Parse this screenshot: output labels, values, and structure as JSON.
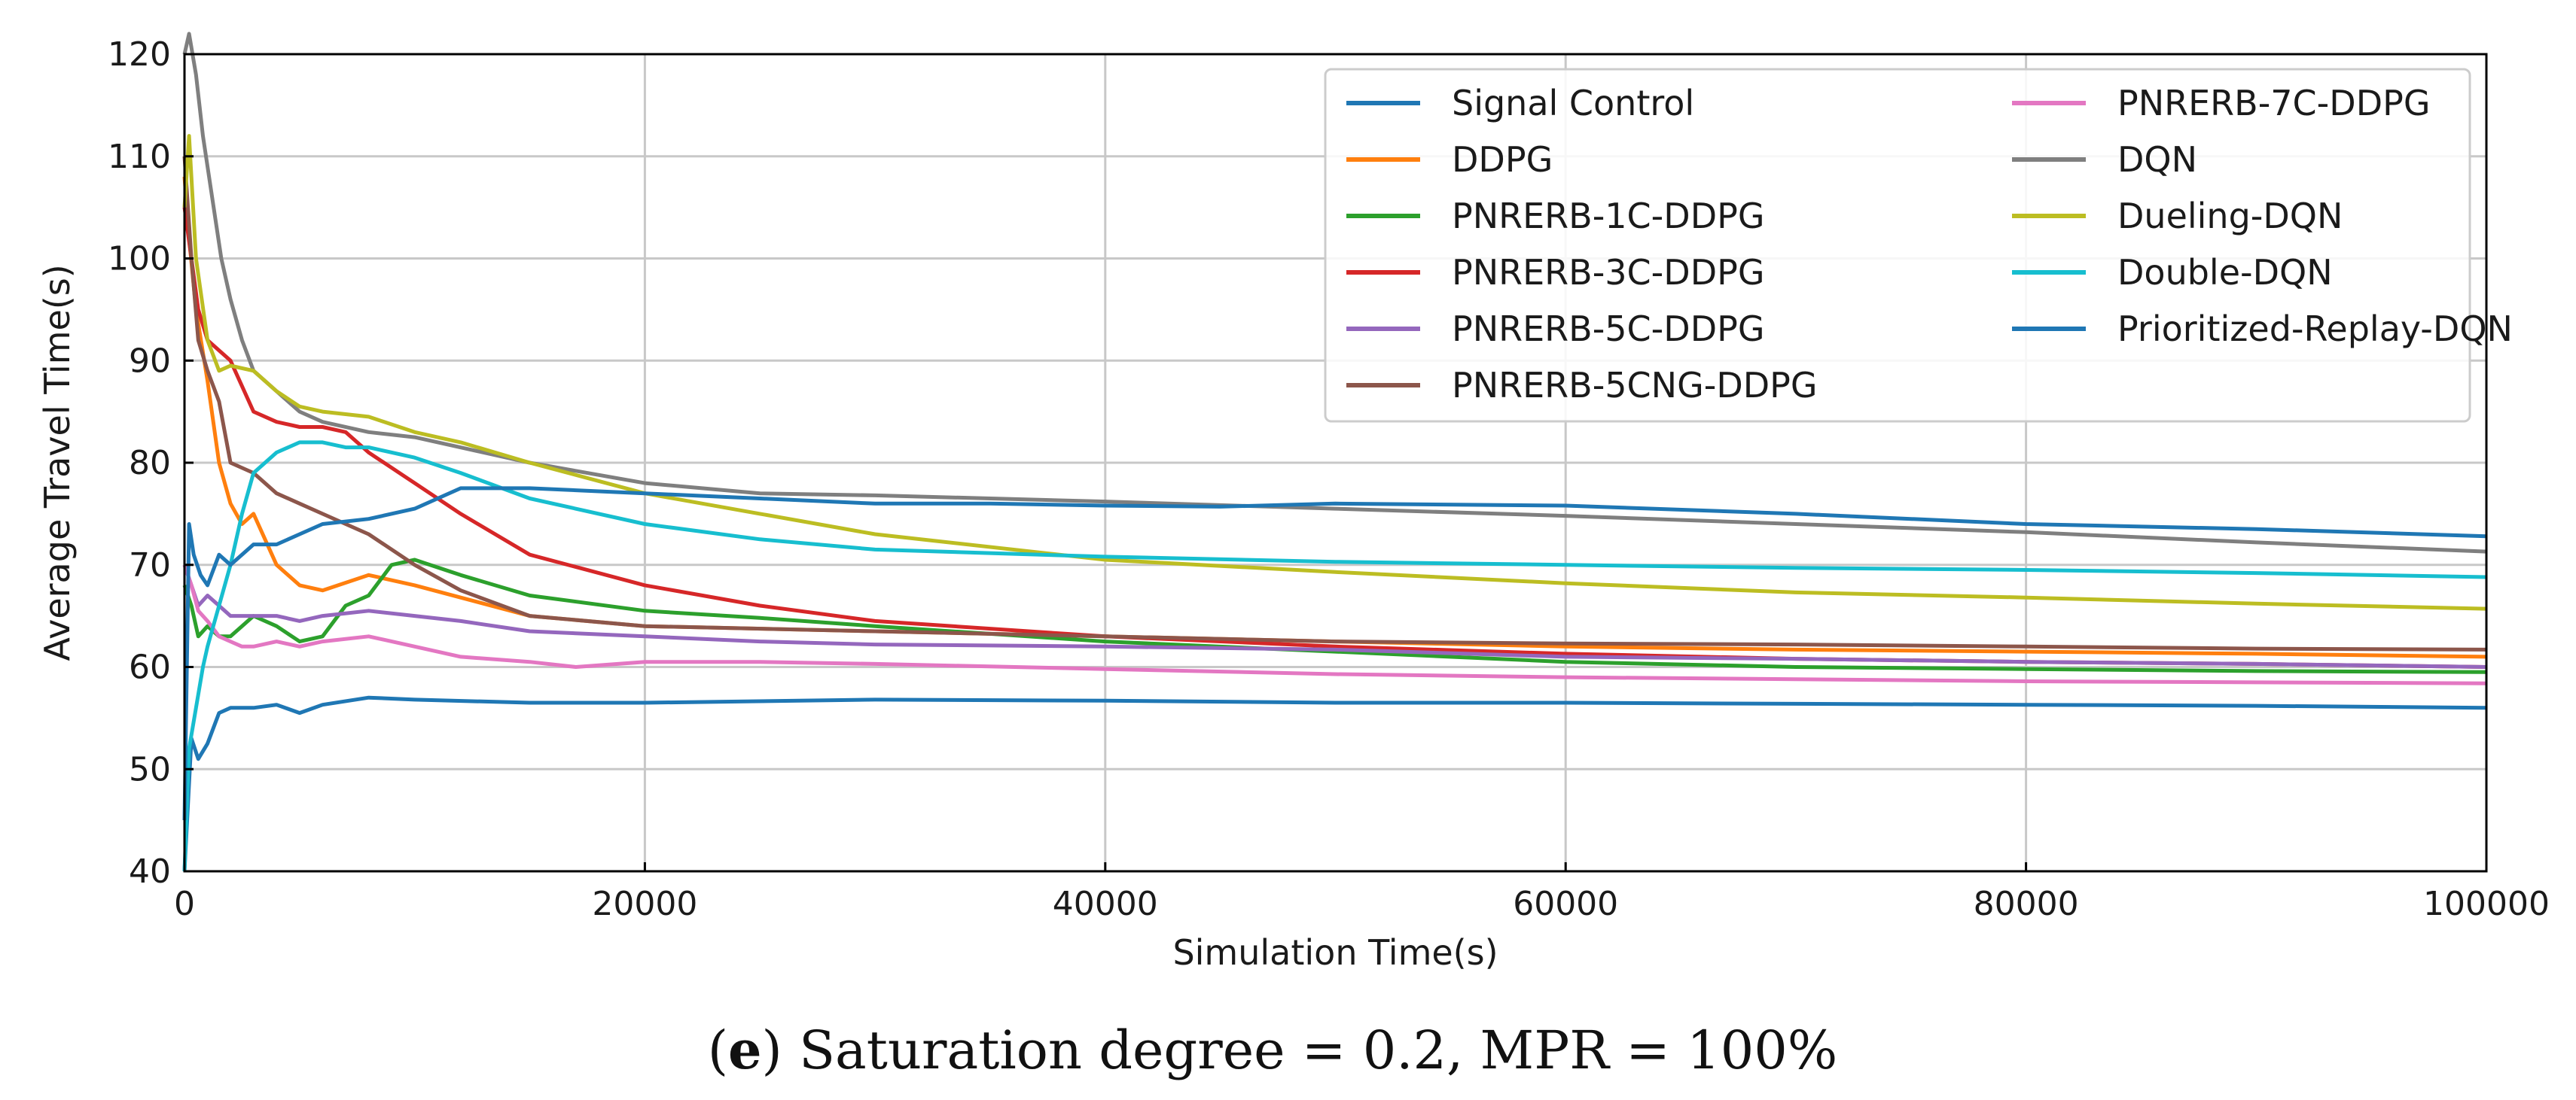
{
  "chart_data": {
    "type": "line",
    "xlabel": "Simulation Time(s)",
    "ylabel": "Average Travel Time(s)",
    "xlim": [
      0,
      100000
    ],
    "ylim": [
      40,
      120
    ],
    "xticks": [
      0,
      20000,
      40000,
      60000,
      80000,
      100000
    ],
    "yticks": [
      40,
      50,
      60,
      70,
      80,
      90,
      100,
      110,
      120
    ],
    "grid": true,
    "legend_position": "top-right",
    "series": [
      {
        "name": "Signal Control",
        "color": "#1f77b4",
        "x": [
          0,
          300,
          600,
          1000,
          1500,
          2000,
          3000,
          4000,
          5000,
          6000,
          8000,
          10000,
          15000,
          20000,
          30000,
          40000,
          50000,
          60000,
          70000,
          80000,
          90000,
          100000
        ],
        "y": [
          40,
          53,
          51,
          52.5,
          55.5,
          56,
          56,
          56.3,
          55.5,
          56.3,
          57,
          56.8,
          56.5,
          56.5,
          56.8,
          56.7,
          56.5,
          56.5,
          56.4,
          56.3,
          56.2,
          56.0
        ]
      },
      {
        "name": "DDPG",
        "color": "#ff7f0e",
        "x": [
          0,
          200,
          500,
          1000,
          1500,
          2000,
          2500,
          3000,
          4000,
          5000,
          6000,
          8000,
          10000,
          15000,
          20000,
          30000,
          40000,
          50000,
          60000,
          70000,
          80000,
          90000,
          100000
        ],
        "y": [
          108,
          102,
          95,
          88,
          80,
          76,
          74,
          75,
          70,
          68,
          67.5,
          69,
          68,
          65,
          64,
          63.5,
          63,
          62.5,
          62,
          61.7,
          61.5,
          61.3,
          61.0
        ]
      },
      {
        "name": "PNRERB-1C-DDPG",
        "color": "#2ca02c",
        "x": [
          0,
          300,
          600,
          1000,
          1500,
          2000,
          2500,
          3000,
          4000,
          5000,
          6000,
          7000,
          8000,
          9000,
          10000,
          12000,
          15000,
          20000,
          25000,
          30000,
          40000,
          50000,
          60000,
          70000,
          80000,
          90000,
          100000
        ],
        "y": [
          68,
          66,
          63,
          64,
          63,
          63,
          64,
          65,
          64,
          62.5,
          63,
          66,
          67,
          70,
          70.5,
          69,
          67,
          65.5,
          64.8,
          64,
          62.5,
          61.5,
          60.5,
          60,
          59.8,
          59.6,
          59.5
        ]
      },
      {
        "name": "PNRERB-3C-DDPG",
        "color": "#d62728",
        "x": [
          0,
          300,
          600,
          1000,
          1500,
          2000,
          3000,
          4000,
          5000,
          6000,
          7000,
          8000,
          10000,
          12000,
          15000,
          20000,
          25000,
          30000,
          40000,
          50000,
          60000,
          70000,
          80000,
          90000,
          100000
        ],
        "y": [
          105,
          100,
          95,
          92,
          91,
          90,
          85,
          84,
          83.5,
          83.5,
          83,
          81,
          78,
          75,
          71,
          68,
          66,
          64.5,
          63,
          62,
          61.3,
          60.8,
          60.5,
          60.3,
          60.0
        ]
      },
      {
        "name": "PNRERB-5C-DDPG",
        "color": "#9467bd",
        "x": [
          0,
          300,
          600,
          1000,
          1500,
          2000,
          3000,
          4000,
          5000,
          6000,
          8000,
          10000,
          12000,
          15000,
          20000,
          25000,
          30000,
          40000,
          50000,
          60000,
          70000,
          80000,
          90000,
          100000
        ],
        "y": [
          70,
          68,
          66,
          67,
          66,
          65,
          65,
          65,
          64.5,
          65,
          65.5,
          65,
          64.5,
          63.5,
          63,
          62.5,
          62.2,
          62,
          61.7,
          61,
          60.8,
          60.5,
          60.3,
          60.0
        ]
      },
      {
        "name": "PNRERB-5CNG-DDPG",
        "color": "#8c564b",
        "x": [
          0,
          300,
          600,
          1000,
          1500,
          2000,
          3000,
          4000,
          5000,
          6000,
          8000,
          10000,
          12000,
          15000,
          20000,
          30000,
          40000,
          50000,
          60000,
          70000,
          80000,
          90000,
          100000
        ],
        "y": [
          110,
          100,
          92,
          89,
          86,
          80,
          79,
          77,
          76,
          75,
          73,
          70,
          67.5,
          65,
          64,
          63.5,
          63,
          62.5,
          62.3,
          62.2,
          62,
          61.8,
          61.7
        ]
      },
      {
        "name": "PNRERB-7C-DDPG",
        "color": "#e377c2",
        "x": [
          0,
          300,
          600,
          1000,
          1500,
          2000,
          2500,
          3000,
          4000,
          5000,
          6000,
          8000,
          10000,
          12000,
          15000,
          17000,
          20000,
          25000,
          30000,
          40000,
          50000,
          60000,
          70000,
          80000,
          90000,
          100000
        ],
        "y": [
          70,
          68,
          65.5,
          64.5,
          63,
          62.5,
          62,
          62,
          62.5,
          62,
          62.5,
          63,
          62,
          61,
          60.5,
          60,
          60.5,
          60.5,
          60.3,
          59.8,
          59.3,
          59,
          58.8,
          58.6,
          58.5,
          58.4
        ]
      },
      {
        "name": "DQN",
        "color": "#7f7f7f",
        "x": [
          0,
          200,
          500,
          800,
          1200,
          1600,
          2000,
          2500,
          3000,
          4000,
          5000,
          6000,
          8000,
          10000,
          15000,
          20000,
          25000,
          30000,
          40000,
          50000,
          60000,
          70000,
          80000,
          90000,
          100000
        ],
        "y": [
          120,
          122,
          118,
          112,
          106,
          100,
          96,
          92,
          89,
          87,
          85,
          84,
          83,
          82.5,
          80,
          78,
          77,
          76.8,
          76.2,
          75.5,
          74.8,
          74,
          73.2,
          72.2,
          71.3
        ]
      },
      {
        "name": "Dueling-DQN",
        "color": "#bcbd22",
        "x": [
          0,
          200,
          500,
          1000,
          1500,
          2000,
          3000,
          4000,
          5000,
          6000,
          8000,
          10000,
          12000,
          15000,
          20000,
          25000,
          30000,
          40000,
          50000,
          60000,
          70000,
          80000,
          90000,
          100000
        ],
        "y": [
          105,
          112,
          100,
          92,
          89,
          89.5,
          89,
          87,
          85.5,
          85,
          84.5,
          83,
          82,
          80,
          77,
          75,
          73,
          70.5,
          69.3,
          68.2,
          67.3,
          66.8,
          66.2,
          65.7
        ]
      },
      {
        "name": "Double-DQN",
        "color": "#17becf",
        "x": [
          0,
          200,
          500,
          800,
          1000,
          1500,
          2000,
          2500,
          3000,
          4000,
          5000,
          6000,
          7000,
          8000,
          10000,
          12000,
          15000,
          20000,
          25000,
          30000,
          40000,
          50000,
          60000,
          70000,
          80000,
          90000,
          100000
        ],
        "y": [
          40,
          52,
          56,
          60,
          62,
          66,
          70,
          75,
          79,
          81,
          82,
          82,
          81.5,
          81.5,
          80.5,
          79,
          76.5,
          74,
          72.5,
          71.5,
          70.8,
          70.3,
          70,
          69.7,
          69.5,
          69.2,
          68.8
        ]
      },
      {
        "name": "Prioritized-Replay-DQN",
        "color": "#1f77b4",
        "x": [
          0,
          200,
          400,
          700,
          1000,
          1500,
          2000,
          3000,
          4000,
          5000,
          6000,
          8000,
          10000,
          12000,
          15000,
          20000,
          25000,
          30000,
          35000,
          40000,
          45000,
          50000,
          60000,
          70000,
          80000,
          90000,
          100000
        ],
        "y": [
          45,
          74,
          71,
          69,
          68,
          71,
          70,
          72,
          72,
          73,
          74,
          74.5,
          75.5,
          77.5,
          77.5,
          77,
          76.5,
          76,
          76,
          75.8,
          75.7,
          76,
          75.8,
          75,
          74,
          73.5,
          72.8
        ]
      }
    ]
  },
  "caption": {
    "prefix": "(",
    "letter": "e",
    "text": ") Saturation degree = 0.2, MPR = 100%"
  }
}
